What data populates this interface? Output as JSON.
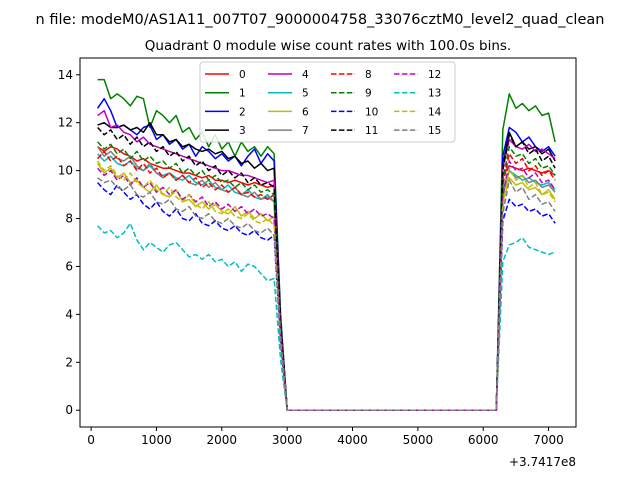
{
  "suptitle": "n file: modeM0/AS1A11_007T07_9000004758_33076cztM0_level2_quad_clean",
  "chart_data": {
    "type": "line",
    "title": "Quadrant 0 module wise count rates with 100.0s bins.",
    "xlabel": "",
    "ylabel": "",
    "offset_label": "+3.7417e8",
    "xlim": [
      -170,
      7420
    ],
    "ylim": [
      -0.7,
      14.7
    ],
    "xticks": [
      0,
      1000,
      2000,
      3000,
      4000,
      5000,
      6000,
      7000
    ],
    "yticks": [
      0,
      2,
      4,
      6,
      8,
      10,
      12,
      14
    ],
    "legend_position": "top-center",
    "x": [
      100,
      200,
      300,
      400,
      500,
      600,
      700,
      800,
      900,
      1000,
      1100,
      1200,
      1300,
      1400,
      1500,
      1600,
      1700,
      1800,
      1900,
      2000,
      2100,
      2200,
      2300,
      2400,
      2500,
      2600,
      2700,
      2800,
      2900,
      3000,
      3100,
      3200,
      3300,
      3400,
      3500,
      3600,
      3700,
      3800,
      3900,
      4000,
      4100,
      4200,
      4300,
      4400,
      4500,
      4600,
      4700,
      4800,
      4900,
      5000,
      5100,
      5200,
      5300,
      5400,
      5500,
      5600,
      5700,
      5800,
      5900,
      6000,
      6100,
      6200,
      6300,
      6400,
      6500,
      6600,
      6700,
      6800,
      6900,
      7000,
      7100
    ],
    "series": [
      {
        "name": "0",
        "color": "#ff0000",
        "dash": "solid",
        "values": [
          11.0,
          10.8,
          11.0,
          10.9,
          10.7,
          10.6,
          10.4,
          10.5,
          10.3,
          10.2,
          10.1,
          10.1,
          10.0,
          9.9,
          9.9,
          9.8,
          9.7,
          9.8,
          9.6,
          9.6,
          9.5,
          9.6,
          9.5,
          9.4,
          9.5,
          9.4,
          9.3,
          9.4,
          3.5,
          0,
          0,
          0,
          0,
          0,
          0,
          0,
          0,
          0,
          0,
          0,
          0,
          0,
          0,
          0,
          0,
          0,
          0,
          0,
          0,
          0,
          0,
          0,
          0,
          0,
          0,
          0,
          0,
          0,
          0,
          0,
          0,
          0,
          9.8,
          10.2,
          10.1,
          10.0,
          10.1,
          10.0,
          9.9,
          10.0,
          9.8
        ]
      },
      {
        "name": "1",
        "color": "#008000",
        "dash": "solid",
        "values": [
          13.8,
          13.8,
          13.0,
          13.2,
          13.0,
          12.7,
          13.1,
          13.0,
          11.8,
          12.5,
          12.3,
          12.0,
          12.3,
          11.6,
          11.8,
          11.3,
          11.6,
          11.0,
          11.5,
          10.9,
          11.2,
          10.6,
          11.2,
          10.8,
          11.0,
          10.6,
          11.0,
          10.7,
          4.0,
          0,
          0,
          0,
          0,
          0,
          0,
          0,
          0,
          0,
          0,
          0,
          0,
          0,
          0,
          0,
          0,
          0,
          0,
          0,
          0,
          0,
          0,
          0,
          0,
          0,
          0,
          0,
          0,
          0,
          0,
          0,
          0,
          0,
          11.7,
          13.2,
          12.6,
          12.8,
          12.5,
          12.7,
          12.3,
          12.4,
          11.2
        ]
      },
      {
        "name": "2",
        "color": "#0000ff",
        "dash": "solid",
        "values": [
          12.6,
          13.0,
          12.5,
          11.8,
          11.9,
          11.7,
          11.5,
          11.8,
          11.9,
          11.3,
          11.5,
          11.1,
          11.3,
          10.9,
          11.1,
          10.6,
          11.0,
          10.8,
          10.5,
          10.7,
          10.4,
          10.6,
          10.2,
          10.6,
          10.9,
          10.3,
          10.7,
          10.4,
          3.8,
          0,
          0,
          0,
          0,
          0,
          0,
          0,
          0,
          0,
          0,
          0,
          0,
          0,
          0,
          0,
          0,
          0,
          0,
          0,
          0,
          0,
          0,
          0,
          0,
          0,
          0,
          0,
          0,
          0,
          0,
          0,
          0,
          0,
          10.6,
          11.8,
          11.6,
          11.2,
          11.4,
          11.0,
          10.8,
          11.0,
          10.6
        ]
      },
      {
        "name": "3",
        "color": "#000000",
        "dash": "solid",
        "values": [
          11.9,
          12.0,
          11.8,
          11.8,
          11.9,
          11.7,
          11.8,
          11.6,
          12.0,
          11.5,
          11.5,
          11.2,
          11.3,
          11.0,
          11.1,
          10.9,
          10.8,
          10.9,
          10.7,
          10.8,
          10.5,
          10.6,
          10.3,
          10.4,
          10.1,
          10.3,
          10.0,
          10.1,
          3.7,
          0,
          0,
          0,
          0,
          0,
          0,
          0,
          0,
          0,
          0,
          0,
          0,
          0,
          0,
          0,
          0,
          0,
          0,
          0,
          0,
          0,
          0,
          0,
          0,
          0,
          0,
          0,
          0,
          0,
          0,
          0,
          0,
          0,
          10.2,
          11.6,
          11.0,
          11.2,
          10.9,
          11.0,
          10.7,
          10.9,
          10.4
        ]
      },
      {
        "name": "4",
        "color": "#bf00bf",
        "dash": "solid",
        "values": [
          12.3,
          12.5,
          11.8,
          11.9,
          11.6,
          11.5,
          11.2,
          11.4,
          11.1,
          11.0,
          10.9,
          10.8,
          10.7,
          10.6,
          10.5,
          10.4,
          10.3,
          10.2,
          10.1,
          10.0,
          10.0,
          9.9,
          9.8,
          9.8,
          9.7,
          9.6,
          9.5,
          9.6,
          3.6,
          0,
          0,
          0,
          0,
          0,
          0,
          0,
          0,
          0,
          0,
          0,
          0,
          0,
          0,
          0,
          0,
          0,
          0,
          0,
          0,
          0,
          0,
          0,
          0,
          0,
          0,
          0,
          0,
          0,
          0,
          0,
          0,
          0,
          10.1,
          11.3,
          11.0,
          10.9,
          11.1,
          10.8,
          10.9,
          10.7,
          10.5
        ]
      },
      {
        "name": "5",
        "color": "#00bfbf",
        "dash": "solid",
        "values": [
          10.7,
          10.4,
          10.6,
          10.3,
          10.2,
          10.4,
          10.1,
          10.0,
          10.2,
          9.9,
          9.8,
          9.9,
          9.7,
          9.6,
          9.8,
          9.5,
          9.4,
          9.6,
          9.3,
          9.2,
          9.4,
          9.1,
          9.0,
          9.2,
          8.9,
          8.8,
          9.0,
          8.7,
          3.3,
          0,
          0,
          0,
          0,
          0,
          0,
          0,
          0,
          0,
          0,
          0,
          0,
          0,
          0,
          0,
          0,
          0,
          0,
          0,
          0,
          0,
          0,
          0,
          0,
          0,
          0,
          0,
          0,
          0,
          0,
          0,
          0,
          0,
          9.2,
          10.0,
          9.8,
          9.6,
          9.7,
          9.5,
          9.4,
          9.5,
          9.2
        ]
      },
      {
        "name": "6",
        "color": "#bfbf00",
        "dash": "solid",
        "values": [
          10.3,
          9.9,
          10.1,
          9.7,
          9.9,
          9.5,
          9.6,
          9.3,
          9.1,
          9.4,
          9.0,
          8.9,
          9.2,
          8.7,
          8.8,
          8.5,
          8.7,
          8.4,
          8.6,
          8.3,
          8.2,
          8.5,
          8.1,
          8.3,
          8.0,
          8.2,
          7.9,
          8.1,
          3.0,
          0,
          0,
          0,
          0,
          0,
          0,
          0,
          0,
          0,
          0,
          0,
          0,
          0,
          0,
          0,
          0,
          0,
          0,
          0,
          0,
          0,
          0,
          0,
          0,
          0,
          0,
          0,
          0,
          0,
          0,
          0,
          0,
          0,
          8.7,
          9.7,
          9.4,
          9.5,
          9.2,
          9.3,
          9.0,
          9.2,
          8.8
        ]
      },
      {
        "name": "7",
        "color": "#808080",
        "dash": "solid",
        "values": [
          11.0,
          10.6,
          10.8,
          10.5,
          10.4,
          10.6,
          10.2,
          10.0,
          10.3,
          9.9,
          9.7,
          9.9,
          9.6,
          9.8,
          9.5,
          9.4,
          9.6,
          9.3,
          9.5,
          9.2,
          9.1,
          9.3,
          9.0,
          8.9,
          9.1,
          8.8,
          8.9,
          8.7,
          3.2,
          0,
          0,
          0,
          0,
          0,
          0,
          0,
          0,
          0,
          0,
          0,
          0,
          0,
          0,
          0,
          0,
          0,
          0,
          0,
          0,
          0,
          0,
          0,
          0,
          0,
          0,
          0,
          0,
          0,
          0,
          0,
          0,
          0,
          9.0,
          10.0,
          9.7,
          9.8,
          9.5,
          9.6,
          9.3,
          9.4,
          9.1
        ]
      },
      {
        "name": "8",
        "color": "#ff0000",
        "dash": "dashed",
        "values": [
          10.5,
          10.8,
          10.4,
          10.6,
          10.2,
          10.4,
          10.0,
          10.3,
          9.9,
          10.1,
          9.7,
          9.9,
          9.6,
          9.8,
          9.5,
          9.7,
          9.3,
          9.5,
          9.2,
          9.4,
          9.1,
          9.3,
          9.0,
          9.1,
          8.9,
          9.0,
          8.8,
          9.0,
          3.3,
          0,
          0,
          0,
          0,
          0,
          0,
          0,
          0,
          0,
          0,
          0,
          0,
          0,
          0,
          0,
          0,
          0,
          0,
          0,
          0,
          0,
          0,
          0,
          0,
          0,
          0,
          0,
          0,
          0,
          0,
          0,
          0,
          0,
          9.4,
          10.7,
          10.3,
          10.5,
          10.0,
          10.2,
          9.8,
          10.0,
          9.6
        ]
      },
      {
        "name": "9",
        "color": "#008000",
        "dash": "dashed",
        "values": [
          11.2,
          10.9,
          11.1,
          10.7,
          10.9,
          10.5,
          10.8,
          10.4,
          10.6,
          10.3,
          10.4,
          10.1,
          10.3,
          9.9,
          10.1,
          9.8,
          10.0,
          9.6,
          9.8,
          9.5,
          9.6,
          9.3,
          9.5,
          9.2,
          9.4,
          9.1,
          9.2,
          9.0,
          3.4,
          0,
          0,
          0,
          0,
          0,
          0,
          0,
          0,
          0,
          0,
          0,
          0,
          0,
          0,
          0,
          0,
          0,
          0,
          0,
          0,
          0,
          0,
          0,
          0,
          0,
          0,
          0,
          0,
          0,
          0,
          0,
          0,
          0,
          9.6,
          11.0,
          10.6,
          10.7,
          10.3,
          10.5,
          10.1,
          10.2,
          9.8
        ]
      },
      {
        "name": "10",
        "color": "#0000ff",
        "dash": "dashed",
        "values": [
          9.5,
          9.2,
          9.0,
          9.4,
          9.1,
          8.8,
          9.0,
          8.6,
          8.4,
          8.7,
          8.3,
          8.1,
          8.4,
          8.0,
          7.9,
          8.2,
          7.8,
          7.7,
          7.9,
          7.6,
          7.5,
          7.7,
          7.4,
          7.3,
          7.5,
          7.2,
          7.1,
          7.3,
          2.8,
          0,
          0,
          0,
          0,
          0,
          0,
          0,
          0,
          0,
          0,
          0,
          0,
          0,
          0,
          0,
          0,
          0,
          0,
          0,
          0,
          0,
          0,
          0,
          0,
          0,
          0,
          0,
          0,
          0,
          0,
          0,
          0,
          0,
          7.9,
          8.8,
          8.5,
          8.6,
          8.3,
          8.4,
          8.1,
          8.2,
          7.8
        ]
      },
      {
        "name": "11",
        "color": "#000000",
        "dash": "dashed",
        "values": [
          11.8,
          11.5,
          11.7,
          11.3,
          11.5,
          11.1,
          11.4,
          11.0,
          11.2,
          10.8,
          11.0,
          10.6,
          10.8,
          10.4,
          10.6,
          10.2,
          10.4,
          10.0,
          10.2,
          9.8,
          10.0,
          9.7,
          9.9,
          9.5,
          9.7,
          9.4,
          9.5,
          9.3,
          3.5,
          0,
          0,
          0,
          0,
          0,
          0,
          0,
          0,
          0,
          0,
          0,
          0,
          0,
          0,
          0,
          0,
          0,
          0,
          0,
          0,
          0,
          0,
          0,
          0,
          0,
          0,
          0,
          0,
          0,
          0,
          0,
          0,
          0,
          10.0,
          11.5,
          11.0,
          11.2,
          10.7,
          10.9,
          10.4,
          10.6,
          10.1
        ]
      },
      {
        "name": "12",
        "color": "#bf00bf",
        "dash": "dashed",
        "values": [
          10.1,
          9.8,
          10.0,
          9.6,
          9.8,
          9.4,
          9.7,
          9.3,
          9.5,
          9.1,
          9.3,
          9.0,
          9.2,
          8.8,
          9.0,
          8.7,
          8.9,
          8.5,
          8.7,
          8.4,
          8.6,
          8.3,
          8.5,
          8.2,
          8.4,
          8.1,
          8.2,
          8.0,
          3.1,
          0,
          0,
          0,
          0,
          0,
          0,
          0,
          0,
          0,
          0,
          0,
          0,
          0,
          0,
          0,
          0,
          0,
          0,
          0,
          0,
          0,
          0,
          0,
          0,
          0,
          0,
          0,
          0,
          0,
          0,
          0,
          0,
          0,
          8.9,
          10.4,
          10.0,
          10.1,
          9.7,
          9.9,
          9.5,
          9.6,
          9.2
        ]
      },
      {
        "name": "13",
        "color": "#00bfbf",
        "dash": "dashed",
        "values": [
          7.7,
          7.4,
          7.5,
          7.2,
          7.4,
          7.8,
          7.1,
          6.7,
          7.0,
          6.8,
          6.6,
          6.9,
          7.0,
          6.7,
          6.4,
          6.5,
          6.3,
          6.5,
          6.2,
          6.3,
          6.0,
          6.2,
          5.8,
          6.1,
          6.0,
          5.7,
          5.4,
          5.5,
          2.1,
          0,
          0,
          0,
          0,
          0,
          0,
          0,
          0,
          0,
          0,
          0,
          0,
          0,
          0,
          0,
          0,
          0,
          0,
          0,
          0,
          0,
          0,
          0,
          0,
          0,
          0,
          0,
          0,
          0,
          0,
          0,
          0,
          0,
          6.2,
          6.9,
          7.0,
          7.2,
          6.8,
          6.7,
          6.6,
          6.5,
          6.6
        ]
      },
      {
        "name": "14",
        "color": "#bfbf00",
        "dash": "dashed",
        "values": [
          10.4,
          10.0,
          10.2,
          9.8,
          9.6,
          9.9,
          9.5,
          9.3,
          9.6,
          9.2,
          9.0,
          9.3,
          8.9,
          8.7,
          9.0,
          8.6,
          8.4,
          8.7,
          8.3,
          8.2,
          8.4,
          8.1,
          8.0,
          8.2,
          7.9,
          7.8,
          8.0,
          7.7,
          2.9,
          0,
          0,
          0,
          0,
          0,
          0,
          0,
          0,
          0,
          0,
          0,
          0,
          0,
          0,
          0,
          0,
          0,
          0,
          0,
          0,
          0,
          0,
          0,
          0,
          0,
          0,
          0,
          0,
          0,
          0,
          0,
          0,
          0,
          8.5,
          10.1,
          9.6,
          9.8,
          9.3,
          9.5,
          9.0,
          9.1,
          8.7
        ]
      },
      {
        "name": "15",
        "color": "#808080",
        "dash": "dashed",
        "values": [
          9.7,
          9.5,
          9.6,
          9.3,
          9.2,
          9.4,
          9.0,
          8.9,
          9.1,
          8.7,
          8.6,
          8.8,
          8.4,
          8.3,
          8.5,
          8.1,
          8.0,
          8.2,
          7.9,
          7.8,
          8.0,
          7.7,
          7.6,
          7.8,
          7.5,
          7.4,
          7.6,
          7.3,
          2.8,
          0,
          0,
          0,
          0,
          0,
          0,
          0,
          0,
          0,
          0,
          0,
          0,
          0,
          0,
          0,
          0,
          0,
          0,
          0,
          0,
          0,
          0,
          0,
          0,
          0,
          0,
          0,
          0,
          0,
          0,
          0,
          0,
          0,
          8.2,
          9.6,
          9.1,
          9.3,
          8.8,
          9.0,
          8.6,
          8.7,
          8.3
        ]
      }
    ]
  }
}
